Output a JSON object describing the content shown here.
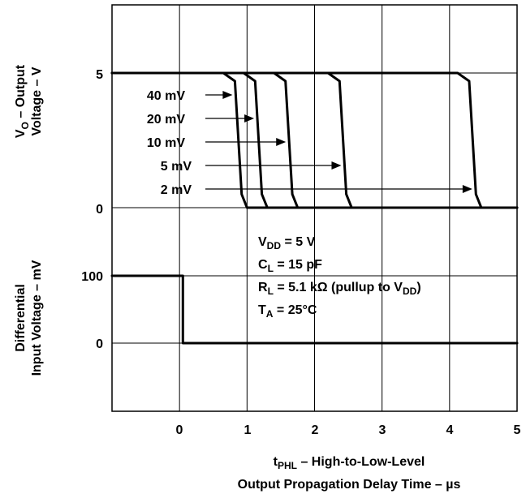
{
  "chart_data": {
    "type": "line",
    "title": "",
    "xlim": [
      -1,
      5
    ],
    "x_ticks": [
      "0",
      "1",
      "2",
      "3",
      "4",
      "5"
    ],
    "xlabel_line1_prefix": "t",
    "xlabel_line1_sub": "PHL",
    "xlabel_line1_rest": " – High-to-Low-Level",
    "xlabel_line2": "Output Propagation Delay Time – µs",
    "top_panel": {
      "ylabel_prefix": "V",
      "ylabel_sub": "O",
      "ylabel_rest": " – Output",
      "ylabel_line2": "Voltage – V",
      "y_ticks": [
        "5",
        "0"
      ],
      "ylim": [
        0,
        5
      ],
      "series": [
        {
          "name": "40 mV",
          "points": [
            [
              -1,
              5
            ],
            [
              0.65,
              5
            ],
            [
              0.82,
              4.7
            ],
            [
              0.92,
              0.5
            ],
            [
              1.0,
              0
            ],
            [
              5,
              0
            ]
          ]
        },
        {
          "name": "20 mV",
          "points": [
            [
              -1,
              5
            ],
            [
              0.95,
              5
            ],
            [
              1.12,
              4.7
            ],
            [
              1.22,
              0.5
            ],
            [
              1.3,
              0
            ],
            [
              5,
              0
            ]
          ]
        },
        {
          "name": "10 mV",
          "points": [
            [
              -1,
              5
            ],
            [
              1.4,
              5
            ],
            [
              1.57,
              4.7
            ],
            [
              1.67,
              0.5
            ],
            [
              1.75,
              0
            ],
            [
              5,
              0
            ]
          ]
        },
        {
          "name": "5 mV",
          "points": [
            [
              -1,
              5
            ],
            [
              2.2,
              5
            ],
            [
              2.37,
              4.7
            ],
            [
              2.47,
              0.5
            ],
            [
              2.55,
              0
            ],
            [
              5,
              0
            ]
          ]
        },
        {
          "name": "2 mV",
          "points": [
            [
              -1,
              5
            ],
            [
              4.12,
              5
            ],
            [
              4.29,
              4.7
            ],
            [
              4.39,
              0.5
            ],
            [
              4.47,
              0
            ],
            [
              5,
              0
            ]
          ]
        }
      ]
    },
    "bottom_panel": {
      "ylabel_line1": "Differential",
      "ylabel_line2": "Input Voltage – mV",
      "y_ticks": [
        "100",
        "0"
      ],
      "ylim": [
        0,
        100
      ],
      "series": [
        {
          "name": "",
          "points": [
            [
              -1,
              100
            ],
            [
              0.05,
              100
            ],
            [
              0.05,
              0
            ],
            [
              5,
              0
            ]
          ]
        }
      ]
    },
    "conditions": [
      {
        "prefix": "V",
        "sub": "DD",
        "rest": " = 5 V"
      },
      {
        "prefix": "C",
        "sub": "L",
        "rest": " = 15 pF"
      },
      {
        "prefix": "R",
        "sub": "L",
        "rest": " = 5.1 kΩ (pullup to V",
        "sub2": "DD",
        "rest2": ")"
      },
      {
        "prefix": "T",
        "sub": "A",
        "rest": " = 25°C"
      }
    ],
    "grid": true,
    "legend": "inline-arrows"
  }
}
